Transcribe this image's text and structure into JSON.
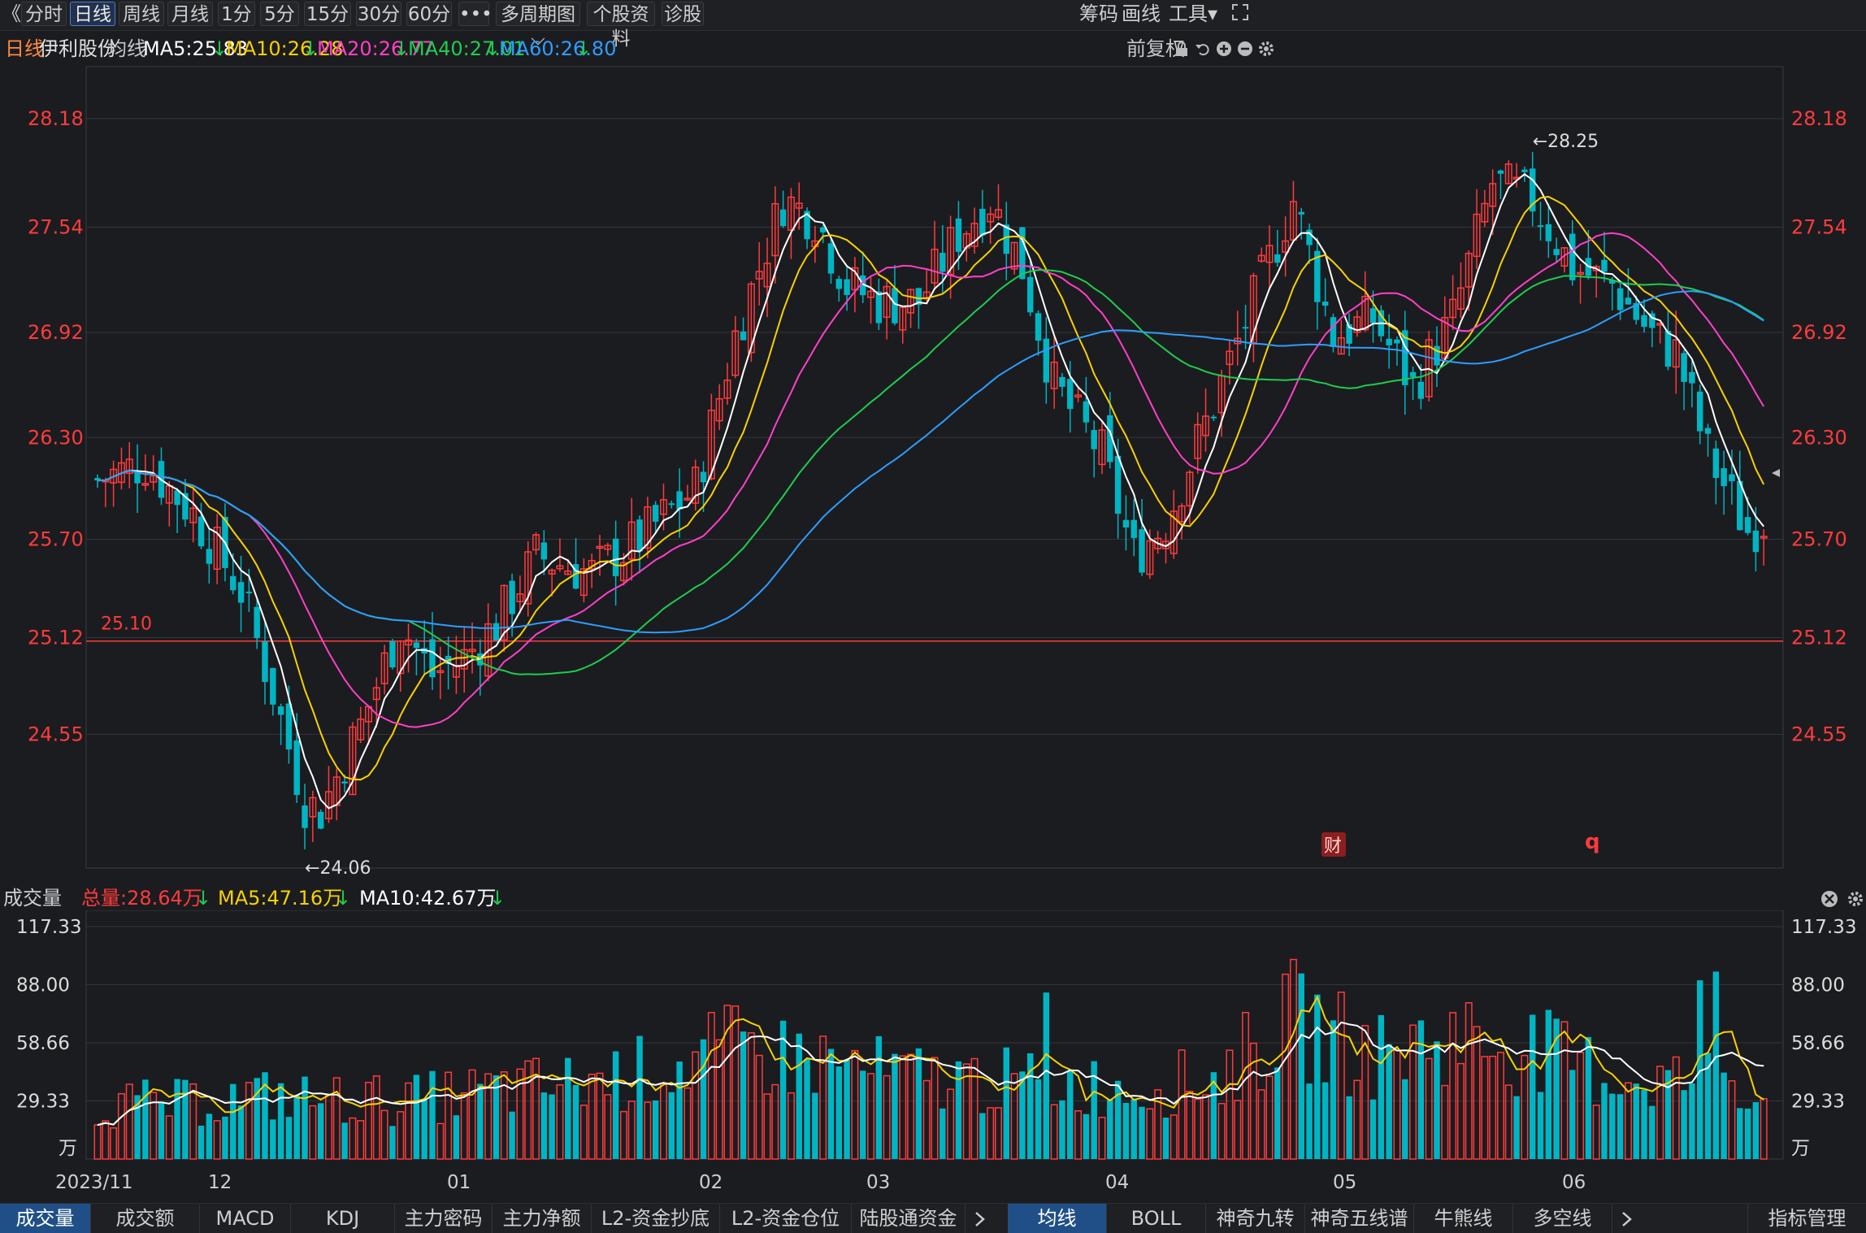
{
  "toolbar": {
    "back_glyph": "《",
    "buttons": [
      "分时",
      "日线",
      "周线",
      "月线",
      "1分",
      "5分",
      "15分",
      "30分",
      "60分",
      "•••",
      "多周期图 ⌵",
      "个股资料",
      "诊股"
    ],
    "active": "日线",
    "right": [
      "筹码",
      "画线",
      "工具▾"
    ]
  },
  "info": {
    "period": "日线",
    "stock_name": "伊利股份",
    "ma_label": "均线",
    "ma5": "MA5:25.83",
    "ma10": "MA10:26.28",
    "ma20": "MA20:26.77",
    "ma40": "MA40:27.01",
    "ma60": "MA60:26.80",
    "arrow": "↓",
    "adjust": "前复权"
  },
  "colors": {
    "up": "#ff3b3b",
    "down": "#00b5c3",
    "ma5": "#ffffff",
    "ma10": "#f7d100",
    "ma20": "#ff40c6",
    "ma40": "#1fcc4e",
    "ma60": "#2e9dff",
    "bg": "#1b1c20",
    "grid": "#34353a"
  },
  "price_axis": {
    "labels": [
      "28.18",
      "27.54",
      "26.92",
      "26.30",
      "25.70",
      "25.12",
      "24.55"
    ]
  },
  "annotations": {
    "high": "←28.25",
    "low": "←24.06",
    "line_label": "25.10",
    "cai": "财",
    "q": "q"
  },
  "volume_panel": {
    "title": "成交量",
    "total": "总量:28.64万",
    "ma5": "MA5:47.16万",
    "ma10": "MA10:42.67万",
    "arrow": "↓",
    "labels": [
      "117.33",
      "88.00",
      "58.66",
      "29.33"
    ],
    "unit": "万"
  },
  "date_axis": [
    "2023/11",
    "12",
    "01",
    "02",
    "03",
    "04",
    "05",
    "06"
  ],
  "bottom_tabs_left": [
    "成交量",
    "成交额",
    "MACD",
    "KDJ",
    "主力密码",
    "主力净额",
    "L2-资金抄底",
    "L2-资金仓位",
    "陆股通资金"
  ],
  "bottom_tabs_right": [
    "均线",
    "BOLL",
    "神奇九转",
    "神奇五线谱",
    "牛熊线",
    "多空线"
  ],
  "bottom_right": "指标管理",
  "chart_data": {
    "type": "candlestick",
    "title": "伊利股份",
    "ylim": [
      23.8,
      28.4
    ],
    "count": 143,
    "anchors": [
      [
        0,
        26.05
      ],
      [
        6,
        26.15
      ],
      [
        12,
        25.85
      ],
      [
        18,
        25.4
      ],
      [
        22,
        24.8
      ],
      [
        26,
        24.15
      ],
      [
        28,
        24.1
      ],
      [
        33,
        24.6
      ],
      [
        38,
        25.2
      ],
      [
        42,
        24.9
      ],
      [
        46,
        25.0
      ],
      [
        50,
        25.2
      ],
      [
        55,
        25.6
      ],
      [
        62,
        25.5
      ],
      [
        68,
        25.7
      ],
      [
        75,
        26.0
      ],
      [
        80,
        26.9
      ],
      [
        86,
        27.7
      ],
      [
        90,
        27.6
      ],
      [
        94,
        27.2
      ],
      [
        98,
        27.1
      ],
      [
        103,
        27.1
      ],
      [
        108,
        27.5
      ],
      [
        112,
        27.7
      ],
      [
        116,
        27.3
      ],
      [
        120,
        26.6
      ],
      [
        126,
        26.2
      ],
      [
        130,
        25.6
      ],
      [
        134,
        25.8
      ],
      [
        140,
        26.5
      ],
      [
        145,
        27.1
      ],
      [
        150,
        27.7
      ],
      [
        155,
        26.9
      ],
      [
        160,
        27.0
      ],
      [
        165,
        26.6
      ],
      [
        170,
        27.0
      ],
      [
        175,
        27.8
      ],
      [
        180,
        27.7
      ],
      [
        185,
        27.3
      ],
      [
        190,
        27.2
      ],
      [
        195,
        26.9
      ],
      [
        198,
        26.8
      ],
      [
        202,
        26.2
      ],
      [
        207,
        25.75
      ],
      [
        210,
        25.85
      ]
    ],
    "volume_anchors": [
      [
        0,
        28
      ],
      [
        10,
        28
      ],
      [
        20,
        32
      ],
      [
        30,
        30
      ],
      [
        40,
        30
      ],
      [
        50,
        35
      ],
      [
        60,
        38
      ],
      [
        70,
        45
      ],
      [
        80,
        55
      ],
      [
        90,
        50
      ],
      [
        100,
        42
      ],
      [
        110,
        40
      ],
      [
        120,
        38
      ],
      [
        130,
        36
      ],
      [
        140,
        40
      ],
      [
        150,
        70
      ],
      [
        160,
        52
      ],
      [
        170,
        62
      ],
      [
        180,
        55
      ],
      [
        190,
        42
      ],
      [
        200,
        40
      ],
      [
        205,
        45
      ],
      [
        209,
        29
      ]
    ],
    "volume_ylim": [
      0,
      117.33
    ]
  }
}
